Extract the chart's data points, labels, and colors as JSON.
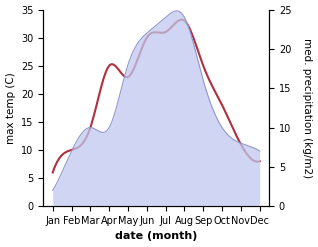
{
  "months": [
    "Jan",
    "Feb",
    "Mar",
    "Apr",
    "May",
    "Jun",
    "Jul",
    "Aug",
    "Sep",
    "Oct",
    "Nov",
    "Dec"
  ],
  "month_indices": [
    0,
    1,
    2,
    3,
    4,
    5,
    6,
    7,
    8,
    9,
    10,
    11
  ],
  "temp_max": [
    6,
    10,
    14,
    25,
    23,
    30,
    31,
    33,
    25,
    18,
    11,
    8
  ],
  "precip": [
    2,
    7,
    10,
    10,
    18,
    22,
    24,
    24,
    16,
    10,
    8,
    7
  ],
  "temp_ylim": [
    0,
    35
  ],
  "precip_ylim": [
    0,
    25
  ],
  "temp_color": "#b03040",
  "precip_fill_color": "#c0c8ee",
  "precip_line_color": "#9098cc",
  "fill_alpha": 0.75,
  "xlabel": "date (month)",
  "ylabel_left": "max temp (C)",
  "ylabel_right": "med. precipitation (kg/m2)",
  "xlabel_fontsize": 8,
  "ylabel_fontsize": 7.5,
  "tick_fontsize": 7,
  "background_color": "#ffffff"
}
